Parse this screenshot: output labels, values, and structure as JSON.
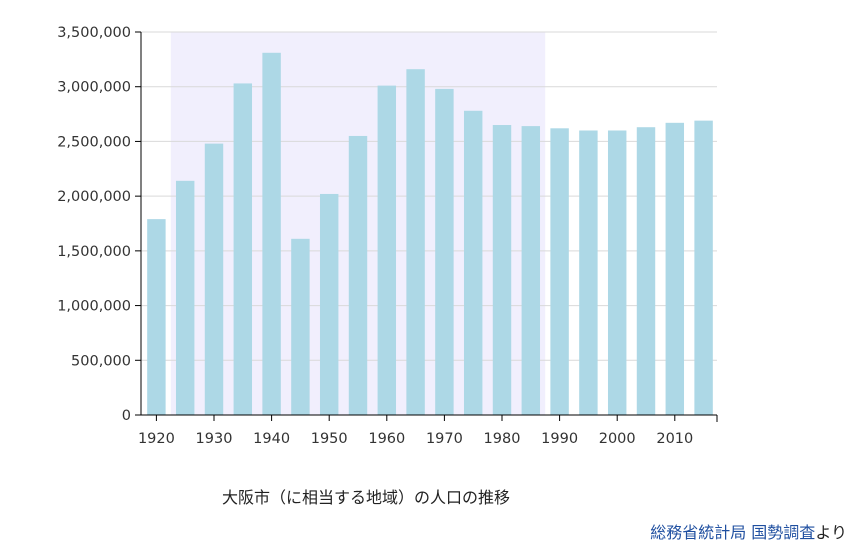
{
  "chart_data": {
    "type": "bar",
    "title": "大阪市（に相当する地域）の人口の推移",
    "xlabel": "",
    "ylabel": "",
    "categories": [
      "1920",
      "1925",
      "1930",
      "1935",
      "1940",
      "1945",
      "1950",
      "1955",
      "1960",
      "1965",
      "1970",
      "1975",
      "1980",
      "1985",
      "1990",
      "1995",
      "2000",
      "2005",
      "2010",
      "2015"
    ],
    "values": [
      1790000,
      2140000,
      2480000,
      3030000,
      3310000,
      1610000,
      2020000,
      2550000,
      3010000,
      3160000,
      2980000,
      2780000,
      2650000,
      2640000,
      2620000,
      2600000,
      2600000,
      2630000,
      2670000,
      2690000
    ],
    "x_tick_labels": [
      "1920",
      "1930",
      "1940",
      "1950",
      "1960",
      "1970",
      "1980",
      "1990",
      "2000",
      "2010"
    ],
    "y_tick_labels": [
      "0",
      "500,000",
      "1,000,000",
      "1,500,000",
      "2,000,000",
      "2,500,000",
      "3,000,000",
      "3,500,000"
    ],
    "ylim": [
      0,
      3500000
    ],
    "grid": true,
    "highlight_range": [
      "1925",
      "1990"
    ],
    "colors": {
      "bar": "#add8e6",
      "highlight": "#f1effd",
      "grid": "#d9d9d9",
      "axis": "#000000"
    }
  },
  "caption": "大阪市（に相当する地域）の人口の推移",
  "source": {
    "link1": "総務省統計局",
    "sep": " ",
    "link2": "国勢調査",
    "suffix": "より"
  }
}
